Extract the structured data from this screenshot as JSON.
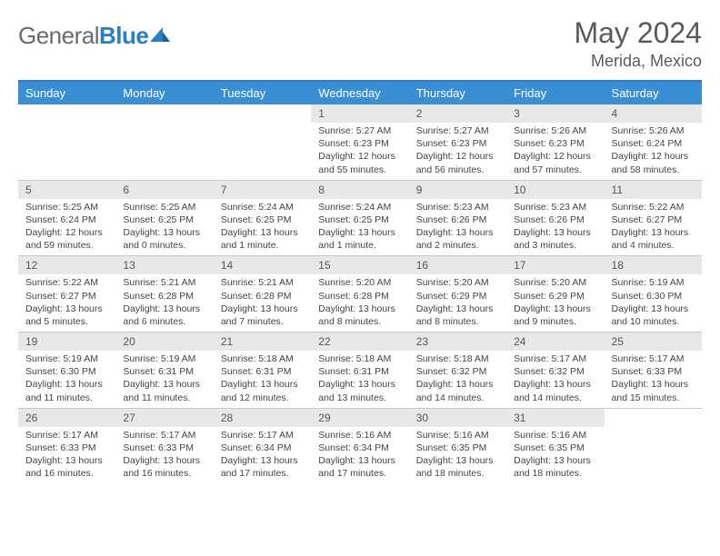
{
  "logo": {
    "general": "General",
    "blue": "Blue"
  },
  "title": "May 2024",
  "location": "Merida, Mexico",
  "colors": {
    "header_bg": "#3a8fd4",
    "rule": "#2a7fc4",
    "daynum_bg": "#e8e8e8",
    "text": "#444444",
    "title_text": "#5a5a5a"
  },
  "day_headers": [
    "Sunday",
    "Monday",
    "Tuesday",
    "Wednesday",
    "Thursday",
    "Friday",
    "Saturday"
  ],
  "weeks": [
    [
      null,
      null,
      null,
      {
        "n": "1",
        "sr": "5:27 AM",
        "ss": "6:23 PM",
        "dl": "12 hours and 55 minutes."
      },
      {
        "n": "2",
        "sr": "5:27 AM",
        "ss": "6:23 PM",
        "dl": "12 hours and 56 minutes."
      },
      {
        "n": "3",
        "sr": "5:26 AM",
        "ss": "6:23 PM",
        "dl": "12 hours and 57 minutes."
      },
      {
        "n": "4",
        "sr": "5:26 AM",
        "ss": "6:24 PM",
        "dl": "12 hours and 58 minutes."
      }
    ],
    [
      {
        "n": "5",
        "sr": "5:25 AM",
        "ss": "6:24 PM",
        "dl": "12 hours and 59 minutes."
      },
      {
        "n": "6",
        "sr": "5:25 AM",
        "ss": "6:25 PM",
        "dl": "13 hours and 0 minutes."
      },
      {
        "n": "7",
        "sr": "5:24 AM",
        "ss": "6:25 PM",
        "dl": "13 hours and 1 minute."
      },
      {
        "n": "8",
        "sr": "5:24 AM",
        "ss": "6:25 PM",
        "dl": "13 hours and 1 minute."
      },
      {
        "n": "9",
        "sr": "5:23 AM",
        "ss": "6:26 PM",
        "dl": "13 hours and 2 minutes."
      },
      {
        "n": "10",
        "sr": "5:23 AM",
        "ss": "6:26 PM",
        "dl": "13 hours and 3 minutes."
      },
      {
        "n": "11",
        "sr": "5:22 AM",
        "ss": "6:27 PM",
        "dl": "13 hours and 4 minutes."
      }
    ],
    [
      {
        "n": "12",
        "sr": "5:22 AM",
        "ss": "6:27 PM",
        "dl": "13 hours and 5 minutes."
      },
      {
        "n": "13",
        "sr": "5:21 AM",
        "ss": "6:28 PM",
        "dl": "13 hours and 6 minutes."
      },
      {
        "n": "14",
        "sr": "5:21 AM",
        "ss": "6:28 PM",
        "dl": "13 hours and 7 minutes."
      },
      {
        "n": "15",
        "sr": "5:20 AM",
        "ss": "6:28 PM",
        "dl": "13 hours and 8 minutes."
      },
      {
        "n": "16",
        "sr": "5:20 AM",
        "ss": "6:29 PM",
        "dl": "13 hours and 8 minutes."
      },
      {
        "n": "17",
        "sr": "5:20 AM",
        "ss": "6:29 PM",
        "dl": "13 hours and 9 minutes."
      },
      {
        "n": "18",
        "sr": "5:19 AM",
        "ss": "6:30 PM",
        "dl": "13 hours and 10 minutes."
      }
    ],
    [
      {
        "n": "19",
        "sr": "5:19 AM",
        "ss": "6:30 PM",
        "dl": "13 hours and 11 minutes."
      },
      {
        "n": "20",
        "sr": "5:19 AM",
        "ss": "6:31 PM",
        "dl": "13 hours and 11 minutes."
      },
      {
        "n": "21",
        "sr": "5:18 AM",
        "ss": "6:31 PM",
        "dl": "13 hours and 12 minutes."
      },
      {
        "n": "22",
        "sr": "5:18 AM",
        "ss": "6:31 PM",
        "dl": "13 hours and 13 minutes."
      },
      {
        "n": "23",
        "sr": "5:18 AM",
        "ss": "6:32 PM",
        "dl": "13 hours and 14 minutes."
      },
      {
        "n": "24",
        "sr": "5:17 AM",
        "ss": "6:32 PM",
        "dl": "13 hours and 14 minutes."
      },
      {
        "n": "25",
        "sr": "5:17 AM",
        "ss": "6:33 PM",
        "dl": "13 hours and 15 minutes."
      }
    ],
    [
      {
        "n": "26",
        "sr": "5:17 AM",
        "ss": "6:33 PM",
        "dl": "13 hours and 16 minutes."
      },
      {
        "n": "27",
        "sr": "5:17 AM",
        "ss": "6:33 PM",
        "dl": "13 hours and 16 minutes."
      },
      {
        "n": "28",
        "sr": "5:17 AM",
        "ss": "6:34 PM",
        "dl": "13 hours and 17 minutes."
      },
      {
        "n": "29",
        "sr": "5:16 AM",
        "ss": "6:34 PM",
        "dl": "13 hours and 17 minutes."
      },
      {
        "n": "30",
        "sr": "5:16 AM",
        "ss": "6:35 PM",
        "dl": "13 hours and 18 minutes."
      },
      {
        "n": "31",
        "sr": "5:16 AM",
        "ss": "6:35 PM",
        "dl": "13 hours and 18 minutes."
      },
      null
    ]
  ],
  "labels": {
    "sunrise": "Sunrise:",
    "sunset": "Sunset:",
    "daylight": "Daylight:"
  }
}
